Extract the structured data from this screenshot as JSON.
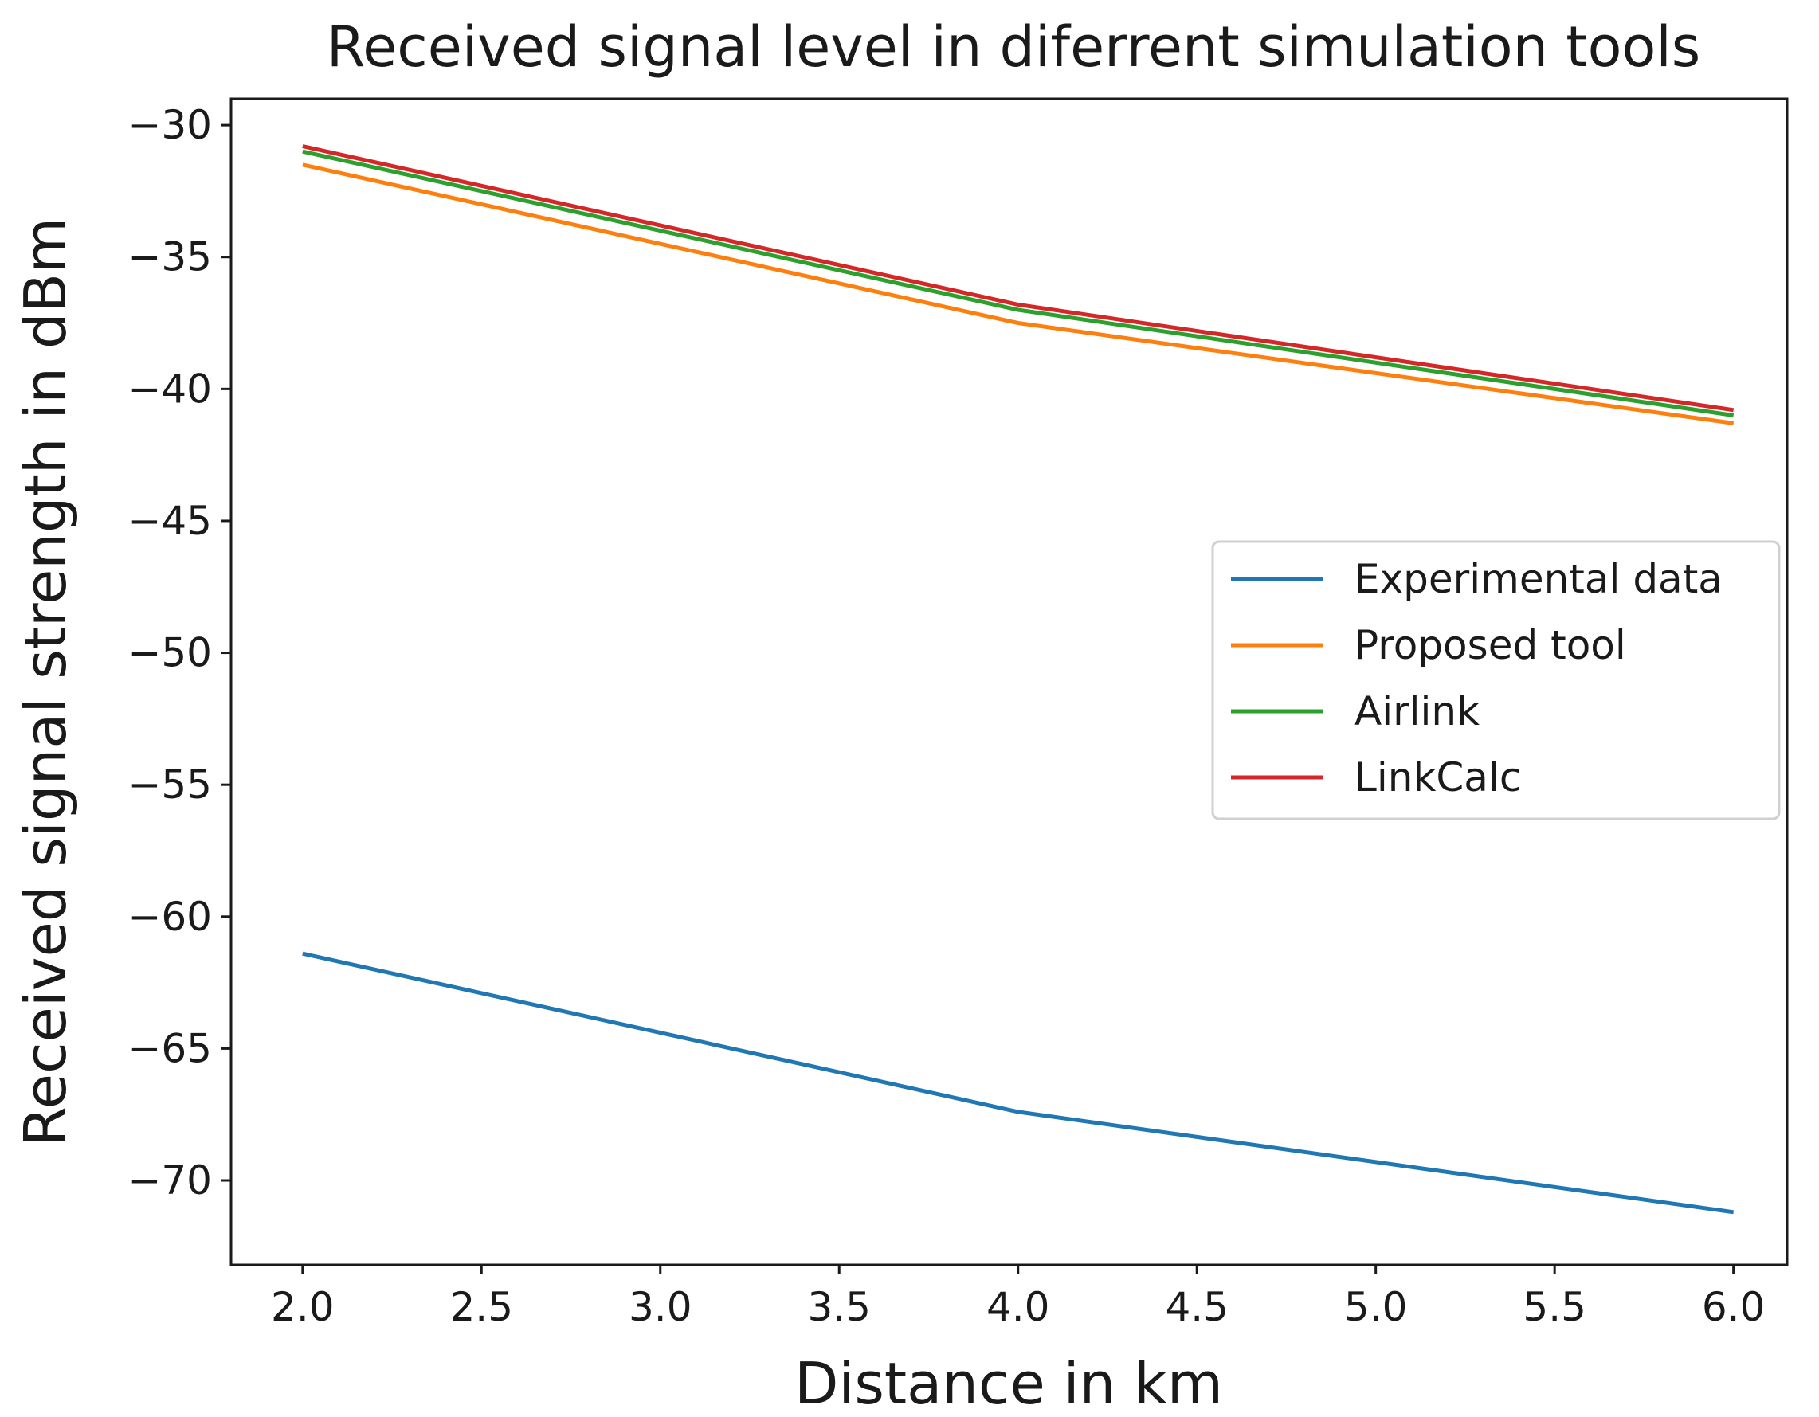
{
  "chart_data": {
    "type": "line",
    "title": "Received signal level in diferrent simulation tools",
    "xlabel": "Distance in km",
    "ylabel": "Received signal strength in dBm",
    "xlim": [
      1.8,
      6.15
    ],
    "ylim": [
      -73.2,
      -29.0
    ],
    "xticks": [
      2.0,
      2.5,
      3.0,
      3.5,
      4.0,
      4.5,
      5.0,
      5.5,
      6.0
    ],
    "xtick_labels": [
      "2.0",
      "2.5",
      "3.0",
      "3.5",
      "4.0",
      "4.5",
      "5.0",
      "5.5",
      "6.0"
    ],
    "yticks": [
      -30,
      -35,
      -40,
      -45,
      -50,
      -55,
      -60,
      -65,
      -70
    ],
    "ytick_labels": [
      "−30",
      "−35",
      "−40",
      "−45",
      "−50",
      "−55",
      "−60",
      "−65",
      "−70"
    ],
    "grid": false,
    "legend_position": "center-right",
    "x": [
      2.0,
      4.0,
      6.0
    ],
    "series": [
      {
        "name": "Experimental data",
        "color": "#1f77b4",
        "values": [
          -61.4,
          -67.4,
          -71.2
        ]
      },
      {
        "name": "Proposed tool",
        "color": "#ff7f0e",
        "values": [
          -31.5,
          -37.5,
          -41.3
        ]
      },
      {
        "name": "Airlink",
        "color": "#2ca02c",
        "values": [
          -31.0,
          -37.0,
          -41.0
        ]
      },
      {
        "name": "LinkCalc",
        "color": "#d62728",
        "values": [
          -30.8,
          -36.8,
          -40.8
        ]
      }
    ]
  }
}
